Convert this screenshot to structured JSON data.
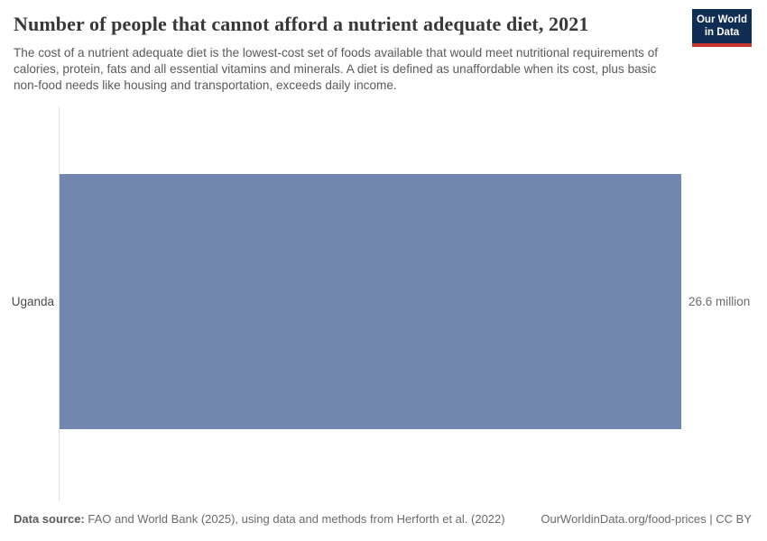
{
  "header": {
    "title": "Number of people that cannot afford a nutrient adequate diet, 2021",
    "subtitle": "The cost of a nutrient adequate diet is the lowest-cost set of foods available that would meet nutritional requirements of calories, protein, fats and all essential vitamins and minerals. A diet is defined as unaffordable when its cost, plus basic non-food needs like housing and transportation, exceeds daily income.",
    "logo_line1": "Our World",
    "logo_line2": "in Data"
  },
  "chart_data": {
    "type": "bar",
    "orientation": "horizontal",
    "title": "Number of people that cannot afford a nutrient adequate diet, 2021",
    "categories": [
      "Uganda"
    ],
    "values": [
      26.6
    ],
    "unit": "million people",
    "value_labels": [
      "26.6 million"
    ],
    "xlim": [
      0,
      26.6
    ],
    "grid": false,
    "legend": false,
    "bar_color": "#7287ad",
    "axis_color": "#dde0e4"
  },
  "footer": {
    "datasource_label": "Data source:",
    "datasource_text": " FAO and World Bank (2025), using data and methods from Herforth et al. (2022)",
    "link_text": "OurWorldinData.org/food-prices | CC BY"
  }
}
